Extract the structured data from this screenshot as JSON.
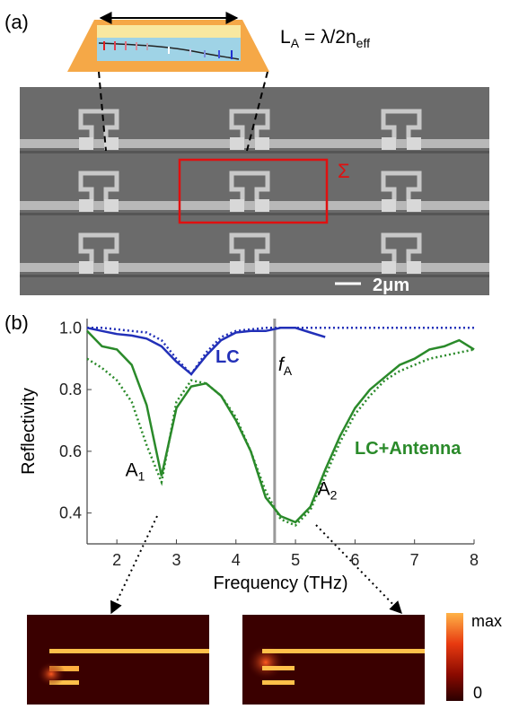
{
  "panel_a": {
    "label": "(a)",
    "formula": [
      "L",
      "A",
      " = λ/2n",
      "eff"
    ],
    "sigma": "Σ",
    "scale_bar": "2μm"
  },
  "chart_data": {
    "type": "line",
    "label": "(b)",
    "x_label": "Frequency (THz)",
    "y_label": "Reflectivity",
    "xlim": [
      1.5,
      8
    ],
    "ylim": [
      0.3,
      1.03
    ],
    "xticks": [
      2,
      3,
      4,
      5,
      6,
      7,
      8
    ],
    "yticks": [
      0.4,
      0.6,
      0.8,
      {
        "value": 1,
        "label": "1.0"
      }
    ],
    "x": [
      1.5,
      1.75,
      2.0,
      2.25,
      2.5,
      2.75,
      3.0,
      3.25,
      3.5,
      3.75,
      4.0,
      4.25,
      4.5,
      4.75,
      5.0,
      5.25,
      5.5,
      5.75,
      6.0,
      6.25,
      6.5,
      6.75,
      7.0,
      7.25,
      7.5,
      7.75,
      8.0
    ],
    "series": [
      {
        "name": "LC",
        "color": "#2230b8",
        "values": [
          1.0,
          0.99,
          0.98,
          0.975,
          0.965,
          0.94,
          0.89,
          0.85,
          0.91,
          0.96,
          0.985,
          0.99,
          0.99,
          1.0,
          1.0,
          0.985,
          0.97,
          null,
          null,
          null,
          null,
          null,
          null,
          null,
          null,
          null,
          null
        ],
        "fit_values": [
          1.0,
          1.0,
          0.995,
          0.99,
          0.985,
          0.96,
          0.9,
          0.85,
          0.92,
          0.97,
          0.99,
          0.995,
          1.0,
          1.0,
          1.0,
          1.0,
          1.0,
          1.0,
          1.0,
          1.0,
          1.0,
          1.0,
          1.0,
          1.0,
          1.0,
          1.0,
          1.0
        ]
      },
      {
        "name": "LC+Antenna",
        "color": "#2a8a2a",
        "values": [
          0.99,
          0.94,
          0.93,
          0.88,
          0.75,
          0.52,
          0.74,
          0.81,
          0.82,
          0.78,
          0.7,
          0.6,
          0.45,
          0.39,
          0.37,
          0.42,
          0.54,
          0.65,
          0.74,
          0.8,
          0.84,
          0.88,
          0.9,
          0.93,
          0.94,
          0.96,
          0.93
        ],
        "fit_values": [
          0.9,
          0.87,
          0.83,
          0.76,
          0.62,
          0.5,
          0.76,
          0.83,
          0.82,
          0.78,
          0.71,
          0.6,
          0.47,
          0.38,
          0.36,
          0.41,
          0.52,
          0.63,
          0.72,
          0.78,
          0.83,
          0.86,
          0.88,
          0.9,
          0.91,
          0.92,
          0.93
        ]
      }
    ],
    "vline": {
      "x": 4.65,
      "text": "f",
      "sub": "A",
      "color": "#999999"
    },
    "annotations": [
      {
        "text": "A",
        "sub": "1",
        "x": 2.7,
        "y": 0.52
      },
      {
        "text": "A",
        "sub": "2",
        "x": 5.25,
        "y": 0.43
      }
    ]
  },
  "colorbar": {
    "max": "max",
    "min": "0"
  }
}
